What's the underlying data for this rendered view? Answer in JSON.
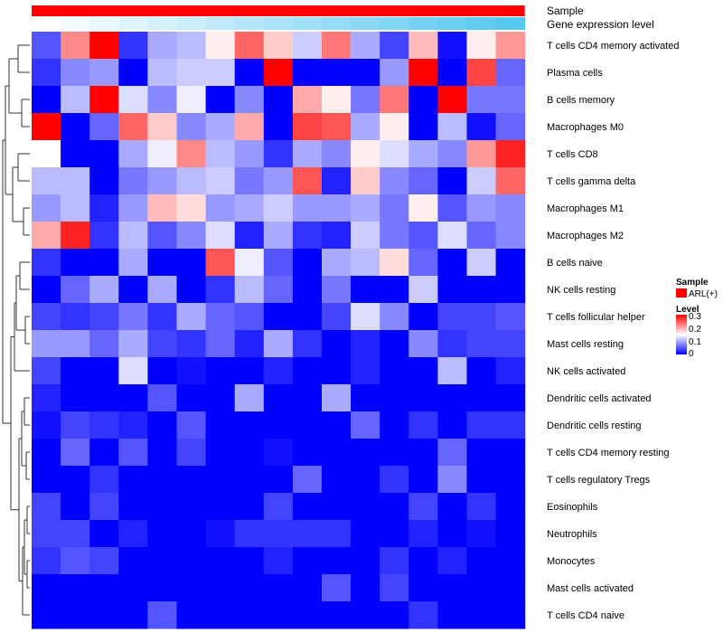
{
  "chart_data": {
    "type": "heatmap",
    "title": "",
    "annotation_tracks": [
      {
        "name": "Sample",
        "color": "#FF0000"
      },
      {
        "name": "Gene expression level",
        "colors": [
          "#FFFFFF",
          "#56C8F0"
        ]
      }
    ],
    "rows": [
      "T cells CD4 memory activated",
      "Plasma cells",
      "B cells memory",
      "Macrophages M0",
      "T cells CD8",
      "T cells gamma delta",
      "Macrophages M1",
      "Macrophages M2",
      "B cells naive",
      "NK cells resting",
      "T cells follicular helper",
      "Mast cells resting",
      "NK cells activated",
      "Dendritic cells activated",
      "Dendritic cells resting",
      "T cells CD4 memory resting",
      "T cells regulatory  Tregs",
      "Eosinophils",
      "Neutrophils",
      "Monocytes",
      "Mast cells activated",
      "T cells CD4 naive"
    ],
    "n_columns": 17,
    "values": [
      [
        0.05,
        0.22,
        0.3,
        0.03,
        0.1,
        0.11,
        0.16,
        0.24,
        0.18,
        0.12,
        0.23,
        0.1,
        0.04,
        0.19,
        0.01,
        0.16,
        0.21
      ],
      [
        0.03,
        0.08,
        0.09,
        0.0,
        0.11,
        0.12,
        0.12,
        0.0,
        0.3,
        0.0,
        0.0,
        0.0,
        0.09,
        0.3,
        0.0,
        0.26,
        0.06
      ],
      [
        0.0,
        0.11,
        0.3,
        0.13,
        0.08,
        0.14,
        0.0,
        0.08,
        0.0,
        0.2,
        0.16,
        0.07,
        0.23,
        0.0,
        0.3,
        0.07,
        0.07
      ],
      [
        0.3,
        0.0,
        0.06,
        0.24,
        0.18,
        0.08,
        0.1,
        0.2,
        0.0,
        0.26,
        0.25,
        0.1,
        0.16,
        0.0,
        0.11,
        0.01,
        0.06
      ],
      [
        0.15,
        0.0,
        0.0,
        0.1,
        0.14,
        0.22,
        0.11,
        0.09,
        0.03,
        0.1,
        0.08,
        0.16,
        0.13,
        0.1,
        0.08,
        0.21,
        0.28
      ],
      [
        0.11,
        0.11,
        0.0,
        0.07,
        0.09,
        0.11,
        0.12,
        0.07,
        0.09,
        0.25,
        0.02,
        0.18,
        0.08,
        0.06,
        0.0,
        0.12,
        0.24
      ],
      [
        0.09,
        0.11,
        0.02,
        0.09,
        0.19,
        0.17,
        0.09,
        0.1,
        0.12,
        0.09,
        0.09,
        0.1,
        0.07,
        0.16,
        0.05,
        0.09,
        0.08
      ],
      [
        0.2,
        0.28,
        0.03,
        0.11,
        0.05,
        0.08,
        0.13,
        0.02,
        0.1,
        0.03,
        0.02,
        0.12,
        0.07,
        0.05,
        0.13,
        0.06,
        0.08
      ],
      [
        0.03,
        0.0,
        0.0,
        0.1,
        0.0,
        0.0,
        0.25,
        0.14,
        0.05,
        0.0,
        0.1,
        0.11,
        0.17,
        0.06,
        0.0,
        0.12,
        0.0
      ],
      [
        0.0,
        0.06,
        0.1,
        0.0,
        0.1,
        0.0,
        0.03,
        0.11,
        0.06,
        0.0,
        0.07,
        0.0,
        0.0,
        0.12,
        0.0,
        0.0,
        0.0
      ],
      [
        0.04,
        0.03,
        0.04,
        0.07,
        0.03,
        0.1,
        0.06,
        0.05,
        0.0,
        0.0,
        0.04,
        0.13,
        0.08,
        0.0,
        0.04,
        0.04,
        0.05
      ],
      [
        0.09,
        0.09,
        0.06,
        0.1,
        0.04,
        0.03,
        0.06,
        0.02,
        0.1,
        0.03,
        0.0,
        0.02,
        0.0,
        0.08,
        0.03,
        0.04,
        0.04
      ],
      [
        0.04,
        0.0,
        0.0,
        0.13,
        0.0,
        0.01,
        0.0,
        0.0,
        0.02,
        0.0,
        0.0,
        0.02,
        0.0,
        0.0,
        0.11,
        0.0,
        0.02
      ],
      [
        0.02,
        0.0,
        0.0,
        0.0,
        0.05,
        0.0,
        0.0,
        0.1,
        0.0,
        0.0,
        0.1,
        0.0,
        0.0,
        0.0,
        0.0,
        0.0,
        0.0
      ],
      [
        0.01,
        0.04,
        0.03,
        0.02,
        0.0,
        0.05,
        0.0,
        0.0,
        0.0,
        0.0,
        0.0,
        0.06,
        0.0,
        0.03,
        0.0,
        0.03,
        0.03
      ],
      [
        0.0,
        0.06,
        0.0,
        0.05,
        0.0,
        0.04,
        0.0,
        0.0,
        0.01,
        0.0,
        0.0,
        0.0,
        0.0,
        0.0,
        0.06,
        0.0,
        0.0
      ],
      [
        0.0,
        0.0,
        0.03,
        0.0,
        0.0,
        0.0,
        0.0,
        0.0,
        0.0,
        0.06,
        0.0,
        0.0,
        0.03,
        0.0,
        0.08,
        0.0,
        0.0
      ],
      [
        0.04,
        0.0,
        0.04,
        0.0,
        0.0,
        0.0,
        0.0,
        0.0,
        0.04,
        0.0,
        0.0,
        0.0,
        0.0,
        0.04,
        0.0,
        0.03,
        0.0
      ],
      [
        0.04,
        0.04,
        0.0,
        0.02,
        0.0,
        0.0,
        0.01,
        0.03,
        0.03,
        0.03,
        0.03,
        0.0,
        0.0,
        0.02,
        0.0,
        0.01,
        0.0
      ],
      [
        0.03,
        0.05,
        0.04,
        0.0,
        0.0,
        0.0,
        0.0,
        0.0,
        0.02,
        0.0,
        0.0,
        0.0,
        0.03,
        0.0,
        0.02,
        0.0,
        0.0
      ],
      [
        0.0,
        0.0,
        0.0,
        0.0,
        0.0,
        0.0,
        0.0,
        0.0,
        0.0,
        0.0,
        0.05,
        0.0,
        0.04,
        0.0,
        0.0,
        0.0,
        0.0
      ],
      [
        0.0,
        0.0,
        0.0,
        0.0,
        0.05,
        0.0,
        0.0,
        0.0,
        0.0,
        0.0,
        0.0,
        0.0,
        0.0,
        0.03,
        0.0,
        0.0,
        0.0
      ]
    ],
    "color_scale": {
      "low": "#0000FF",
      "mid": "#FFFFFF",
      "high": "#FF0000",
      "min": 0,
      "mid_value": 0.15,
      "max": 0.3
    },
    "legend": {
      "sample_title": "Sample",
      "sample_entry": "ARL(+)",
      "sample_color": "#FF0000",
      "level_title": "Level",
      "ticks": [
        "0.3",
        "0.2",
        "0.1",
        "0"
      ],
      "tick_values": [
        0.3,
        0.2,
        0.1,
        0
      ]
    },
    "dendrogram": "row clustering tree on left"
  }
}
